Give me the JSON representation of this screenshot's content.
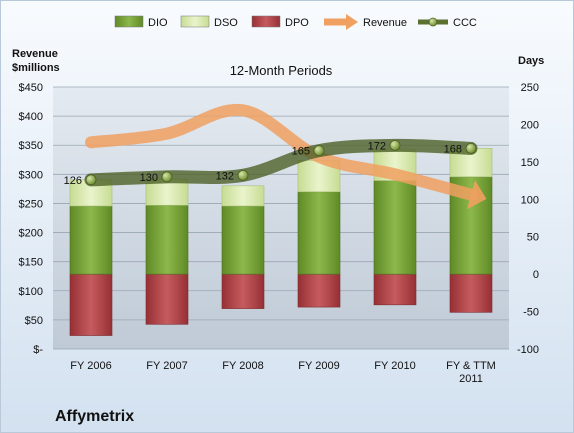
{
  "chart_data": {
    "type": "bar",
    "title": "12-Month Periods",
    "company": "Affymetrix",
    "left_axis_title": [
      "Revenue",
      "$millions"
    ],
    "right_axis_title": "Days",
    "categories": [
      [
        "FY 2006"
      ],
      [
        "FY 2007"
      ],
      [
        "FY 2008"
      ],
      [
        "FY 2009"
      ],
      [
        "FY 2010"
      ],
      [
        "FY & TTM",
        "2011"
      ]
    ],
    "left_axis": {
      "min": 0,
      "max": 450,
      "step": 50,
      "tick_labels": [
        "$-",
        "$50",
        "$100",
        "$150",
        "$200",
        "$250",
        "$300",
        "$350",
        "$400",
        "$450"
      ]
    },
    "right_axis": {
      "min": -100,
      "max": 250,
      "step": 50,
      "tick_labels": [
        "-100",
        "-50",
        "0",
        "50",
        "100",
        "150",
        "200",
        "250"
      ]
    },
    "legend": [
      {
        "name": "DIO",
        "kind": "bar",
        "color": "#7aa33a"
      },
      {
        "name": "DSO",
        "kind": "bar",
        "color": "#d9e8b0"
      },
      {
        "name": "DPO",
        "kind": "bar",
        "color": "#b5464a"
      },
      {
        "name": "Revenue",
        "kind": "arrow",
        "color": "#f0a060"
      },
      {
        "name": "CCC",
        "kind": "line",
        "color": "#5c7030"
      }
    ],
    "series": [
      {
        "name": "DIO",
        "axis": "right",
        "values": [
          91,
          92,
          91,
          110,
          125,
          130
        ]
      },
      {
        "name": "DSO",
        "axis": "right",
        "values": [
          35,
          35,
          27,
          42,
          41,
          38
        ]
      },
      {
        "name": "DPO",
        "axis": "right",
        "values": [
          -82,
          -67,
          -46,
          -44,
          -41,
          -51
        ]
      },
      {
        "name": "Revenue",
        "axis": "left",
        "values": [
          355,
          370,
          410,
          330,
          300,
          265
        ]
      },
      {
        "name": "CCC",
        "axis": "right",
        "values": [
          126,
          130,
          132,
          165,
          172,
          168
        ]
      }
    ],
    "data_labels": {
      "CCC": [
        "126",
        "130",
        "132",
        "165",
        "172",
        "168"
      ]
    },
    "grid": "horizontal",
    "legend_position": "top"
  }
}
